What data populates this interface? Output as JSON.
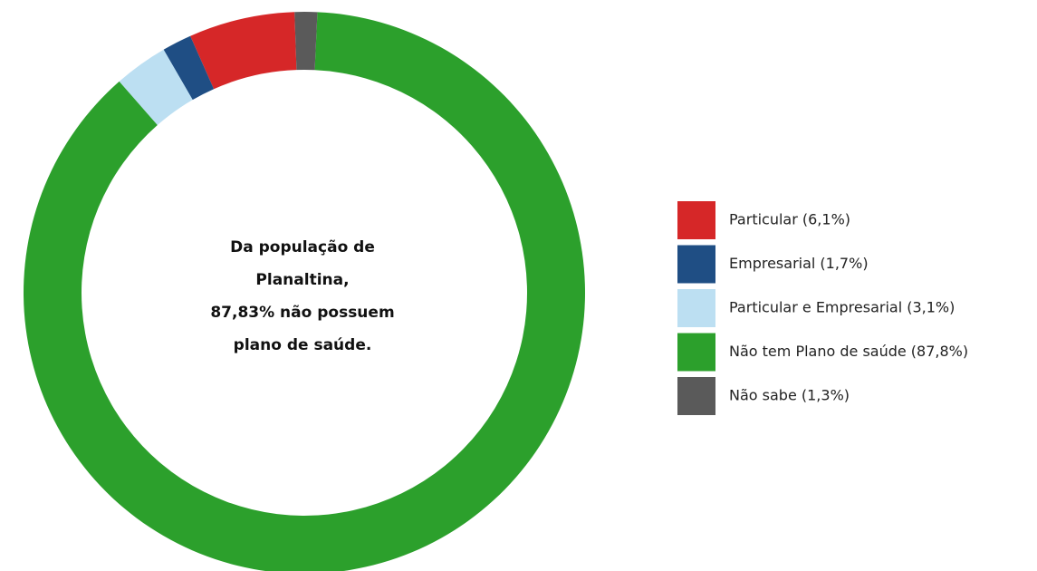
{
  "chart_data": {
    "type": "donut",
    "categories": [
      "Particular (6,1%)",
      "Empresarial (1,7%)",
      "Particular e Empresarial (3,1%)",
      "Não tem Plano de saúde (87,8%)",
      "Não sabe (1,3%)"
    ],
    "values": [
      6.1,
      1.7,
      3.1,
      87.8,
      1.3
    ],
    "colors": [
      "#d62728",
      "#1f4e84",
      "#bcdff2",
      "#2ca02c",
      "#5a5a5a"
    ],
    "annotation": [
      "Da população de",
      "Planaltina,",
      "87,83% não possuem",
      "plano de saúde."
    ],
    "legend": "right"
  }
}
